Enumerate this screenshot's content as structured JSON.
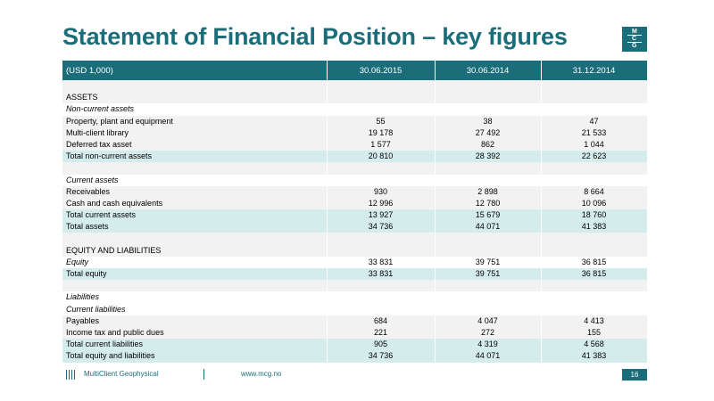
{
  "title": "Statement of Financial Position – key figures",
  "logo": {
    "letters": [
      "M",
      "C",
      "G"
    ],
    "color": "#1b6d7a"
  },
  "table": {
    "header": [
      "(USD 1,000)",
      "30.06.2015",
      "30.06.2014",
      "31.12.2014"
    ],
    "rows": [
      {
        "label": "",
        "values": [
          "",
          "",
          ""
        ],
        "style": "blank"
      },
      {
        "label": "ASSETS",
        "values": [
          "",
          "",
          ""
        ],
        "style": "plain"
      },
      {
        "label": "Non-current assets",
        "values": [
          "",
          "",
          ""
        ],
        "style": "italic"
      },
      {
        "label": "Property, plant and equipment",
        "values": [
          "55",
          "38",
          "47"
        ],
        "style": "plain"
      },
      {
        "label": "Multi-client library",
        "values": [
          "19 178",
          "27 492",
          "21 533"
        ],
        "style": "plain"
      },
      {
        "label": "Deferred tax asset",
        "values": [
          "1 577",
          "862",
          "1 044"
        ],
        "style": "plain"
      },
      {
        "label": "Total non-current assets",
        "values": [
          "20 810",
          "28 392",
          "22 623"
        ],
        "style": "total"
      },
      {
        "label": "",
        "values": [
          "",
          "",
          ""
        ],
        "style": "blank"
      },
      {
        "label": "Current assets",
        "values": [
          "",
          "",
          ""
        ],
        "style": "italic"
      },
      {
        "label": "Receivables",
        "values": [
          "930",
          "2 898",
          "8 664"
        ],
        "style": "plain"
      },
      {
        "label": "Cash and cash equivalents",
        "values": [
          "12 996",
          "12 780",
          "10 096"
        ],
        "style": "plain"
      },
      {
        "label": "Total current assets",
        "values": [
          "13 927",
          "15 679",
          "18 760"
        ],
        "style": "total"
      },
      {
        "label": "Total assets",
        "values": [
          "34 736",
          "44 071",
          "41 383"
        ],
        "style": "total"
      },
      {
        "label": "",
        "values": [
          "",
          "",
          ""
        ],
        "style": "blank"
      },
      {
        "label": "EQUITY AND LIABILITIES",
        "values": [
          "",
          "",
          ""
        ],
        "style": "plain"
      },
      {
        "label": "Equity",
        "values": [
          "33 831",
          "39 751",
          "36 815"
        ],
        "style": "italic"
      },
      {
        "label": "Total equity",
        "values": [
          "33 831",
          "39 751",
          "36 815"
        ],
        "style": "total"
      },
      {
        "label": "",
        "values": [
          "",
          "",
          ""
        ],
        "style": "blank"
      },
      {
        "label": "Liabilities",
        "values": [
          "",
          "",
          ""
        ],
        "style": "italic"
      },
      {
        "label": "Current liabilities",
        "values": [
          "",
          "",
          ""
        ],
        "style": "italic"
      },
      {
        "label": "Payables",
        "values": [
          "684",
          "4 047",
          "4 413"
        ],
        "style": "plain"
      },
      {
        "label": "Income tax and public dues",
        "values": [
          "221",
          "272",
          "155"
        ],
        "style": "plain"
      },
      {
        "label": "Total current liabilities",
        "values": [
          "905",
          "4 319",
          "4 568"
        ],
        "style": "total"
      },
      {
        "label": "Total equity and liabilities",
        "values": [
          "34 736",
          "44 071",
          "41 383"
        ],
        "style": "total"
      }
    ]
  },
  "footer": {
    "company": "MultiClient Geophysical",
    "url": "www.mcg.no",
    "page_number": "16"
  }
}
